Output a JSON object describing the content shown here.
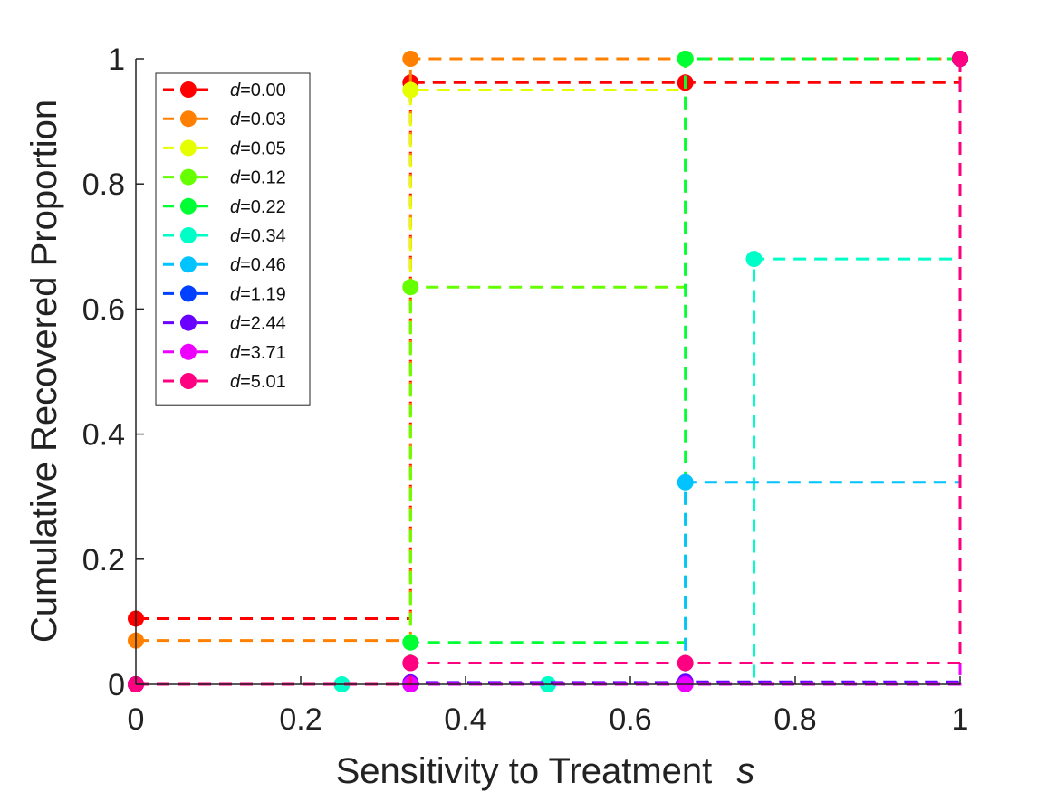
{
  "chart_data": {
    "type": "line",
    "step": "post",
    "title": "",
    "xlabel": "Sensitivity to Treatment",
    "xlabel_var": "s",
    "ylabel": "Cumulative Recovered Proportion",
    "xlim": [
      0,
      1
    ],
    "ylim": [
      0,
      1
    ],
    "xticks": [
      0,
      0.2,
      0.4,
      0.6,
      0.8,
      1
    ],
    "xtick_labels": [
      "0",
      "0.2",
      "0.4",
      "0.6",
      "0.8",
      "1"
    ],
    "yticks": [
      0,
      0.2,
      0.4,
      0.6,
      0.8,
      1
    ],
    "ytick_labels": [
      "0",
      "0.2",
      "0.4",
      "0.6",
      "0.8",
      "1"
    ],
    "grid": false,
    "legend_position": "top-left",
    "line_style": "dashed",
    "marker": "circle",
    "series": [
      {
        "name": "0.00",
        "color": "#ff0000",
        "x": [
          0,
          0.3333,
          0.6667,
          1
        ],
        "y": [
          0.105,
          0.962,
          0.962,
          1.0
        ]
      },
      {
        "name": "0.03",
        "color": "#ff8000",
        "x": [
          0,
          0.3333,
          0.6667,
          1
        ],
        "y": [
          0.07,
          1.0,
          1.0,
          1.0
        ]
      },
      {
        "name": "0.05",
        "color": "#e6ff00",
        "x": [
          0,
          0.3333,
          0.6667,
          1
        ],
        "y": [
          0.0,
          0.95,
          1.0,
          1.0
        ]
      },
      {
        "name": "0.12",
        "color": "#66ff00",
        "x": [
          0,
          0.3333,
          0.6667,
          1
        ],
        "y": [
          0.0,
          0.635,
          1.0,
          1.0
        ]
      },
      {
        "name": "0.22",
        "color": "#00ff33",
        "x": [
          0,
          0.3333,
          0.6667,
          1
        ],
        "y": [
          0.0,
          0.067,
          1.0,
          1.0
        ]
      },
      {
        "name": "0.34",
        "color": "#00ffc8",
        "x": [
          0,
          0.25,
          0.5,
          0.75,
          1
        ],
        "y": [
          0.0,
          0.0,
          0.0,
          0.68,
          1.0
        ]
      },
      {
        "name": "0.46",
        "color": "#00c3ff",
        "x": [
          0,
          0.3333,
          0.6667,
          1
        ],
        "y": [
          0.0,
          0.0,
          0.323,
          1.0
        ]
      },
      {
        "name": "1.19",
        "color": "#0040ff",
        "x": [
          0,
          0.3333,
          0.6667,
          1
        ],
        "y": [
          0.0,
          0.002,
          0.003,
          1.0
        ]
      },
      {
        "name": "2.44",
        "color": "#6a00ff",
        "x": [
          0,
          0.3333,
          0.6667,
          1
        ],
        "y": [
          0.0,
          0.003,
          0.004,
          1.0
        ]
      },
      {
        "name": "3.71",
        "color": "#ee00ff",
        "x": [
          0,
          0.3333,
          0.6667,
          1
        ],
        "y": [
          0.0,
          0.0,
          0.0,
          1.0
        ]
      },
      {
        "name": "5.01",
        "color": "#ff0080",
        "x": [
          0,
          0.3333,
          0.6667,
          1
        ],
        "y": [
          0.0,
          0.034,
          0.034,
          1.0
        ]
      }
    ],
    "legend_prefix": "d="
  }
}
